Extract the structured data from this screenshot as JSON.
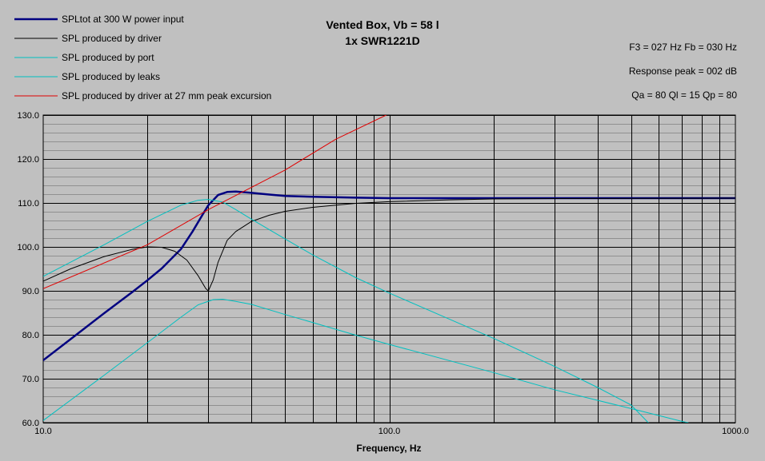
{
  "chart_data": {
    "type": "line",
    "title_lines": [
      "Vented Box, Vb = 58 l",
      "1x SWR1221D"
    ],
    "info_lines": [
      "F3 = 027 Hz  Fb = 030 Hz",
      "Response peak = 002 dB",
      "Qa = 80  Ql = 15  Qp = 80"
    ],
    "xlabel": "Frequency, Hz",
    "ylabel": "",
    "xscale": "log",
    "xlim": [
      10,
      1000
    ],
    "ylim": [
      60,
      130
    ],
    "xtick_labels": [
      "10.0",
      "100.0",
      "1000.0"
    ],
    "ytick_labels": [
      "60.0",
      "70.0",
      "80.0",
      "90.0",
      "100.0",
      "110.0",
      "120.0",
      "130.0"
    ],
    "grid": true,
    "legend_position": "top-left",
    "background_color": "#c0c0c0",
    "series": [
      {
        "name": "SPLtot at 300 W power input",
        "color": "#000080",
        "bold": true,
        "points": [
          [
            10,
            74.2
          ],
          [
            12,
            79.0
          ],
          [
            15,
            84.9
          ],
          [
            18,
            89.6
          ],
          [
            20,
            92.4
          ],
          [
            22,
            95.1
          ],
          [
            25,
            99.5
          ],
          [
            27,
            103.5
          ],
          [
            29,
            107.6
          ],
          [
            30,
            109.5
          ],
          [
            32,
            111.8
          ],
          [
            34,
            112.5
          ],
          [
            36,
            112.6
          ],
          [
            40,
            112.3
          ],
          [
            45,
            111.9
          ],
          [
            50,
            111.6
          ],
          [
            60,
            111.4
          ],
          [
            80,
            111.2
          ],
          [
            100,
            111.1
          ],
          [
            200,
            111.1
          ],
          [
            1000,
            111.1
          ]
        ]
      },
      {
        "name": "SPL produced by driver",
        "color": "#000000",
        "bold": false,
        "points": [
          [
            10,
            92.2
          ],
          [
            12,
            95.0
          ],
          [
            15,
            97.8
          ],
          [
            18,
            99.4
          ],
          [
            20,
            100.0
          ],
          [
            22,
            99.9
          ],
          [
            24,
            99.0
          ],
          [
            26,
            97.0
          ],
          [
            28,
            93.5
          ],
          [
            29.5,
            90.5
          ],
          [
            30,
            90.0
          ],
          [
            31,
            92.5
          ],
          [
            32,
            96.5
          ],
          [
            34,
            101.5
          ],
          [
            36,
            103.5
          ],
          [
            40,
            105.8
          ],
          [
            45,
            107.2
          ],
          [
            50,
            108.1
          ],
          [
            60,
            109.0
          ],
          [
            80,
            109.9
          ],
          [
            100,
            110.3
          ],
          [
            150,
            110.7
          ],
          [
            200,
            110.9
          ],
          [
            300,
            111.0
          ],
          [
            1000,
            111.1
          ]
        ]
      },
      {
        "name": "SPL produced by port",
        "color": "#00c0c0",
        "bold": false,
        "points": [
          [
            10,
            93.3
          ],
          [
            15,
            100.5
          ],
          [
            20,
            105.8
          ],
          [
            25,
            109.5
          ],
          [
            28,
            110.6
          ],
          [
            30,
            110.8
          ],
          [
            33,
            110.2
          ],
          [
            36,
            108.5
          ],
          [
            40,
            106.3
          ],
          [
            50,
            101.8
          ],
          [
            60,
            98.2
          ],
          [
            80,
            93.0
          ],
          [
            100,
            89.5
          ],
          [
            200,
            79.2
          ],
          [
            300,
            72.8
          ],
          [
            400,
            68.0
          ],
          [
            500,
            64.0
          ],
          [
            560,
            60.0
          ]
        ]
      },
      {
        "name": "SPL produced by leaks",
        "color": "#00c0c0",
        "bold": false,
        "points": [
          [
            10,
            60.5
          ],
          [
            15,
            70.8
          ],
          [
            20,
            78.2
          ],
          [
            25,
            84.0
          ],
          [
            28,
            86.8
          ],
          [
            31,
            88.0
          ],
          [
            33,
            88.1
          ],
          [
            36,
            87.6
          ],
          [
            40,
            86.9
          ],
          [
            50,
            84.6
          ],
          [
            60,
            82.8
          ],
          [
            80,
            79.9
          ],
          [
            100,
            77.8
          ],
          [
            200,
            71.4
          ],
          [
            300,
            67.5
          ],
          [
            500,
            63.2
          ],
          [
            700,
            60.3
          ],
          [
            730,
            60.0
          ]
        ]
      },
      {
        "name": "SPL produced by driver at 27 mm peak excursion",
        "color": "#e00000",
        "bold": false,
        "points": [
          [
            10,
            90.5
          ],
          [
            20,
            100.5
          ],
          [
            30,
            108.5
          ],
          [
            50,
            117.5
          ],
          [
            70,
            124.5
          ],
          [
            98,
            130.0
          ]
        ]
      }
    ]
  }
}
